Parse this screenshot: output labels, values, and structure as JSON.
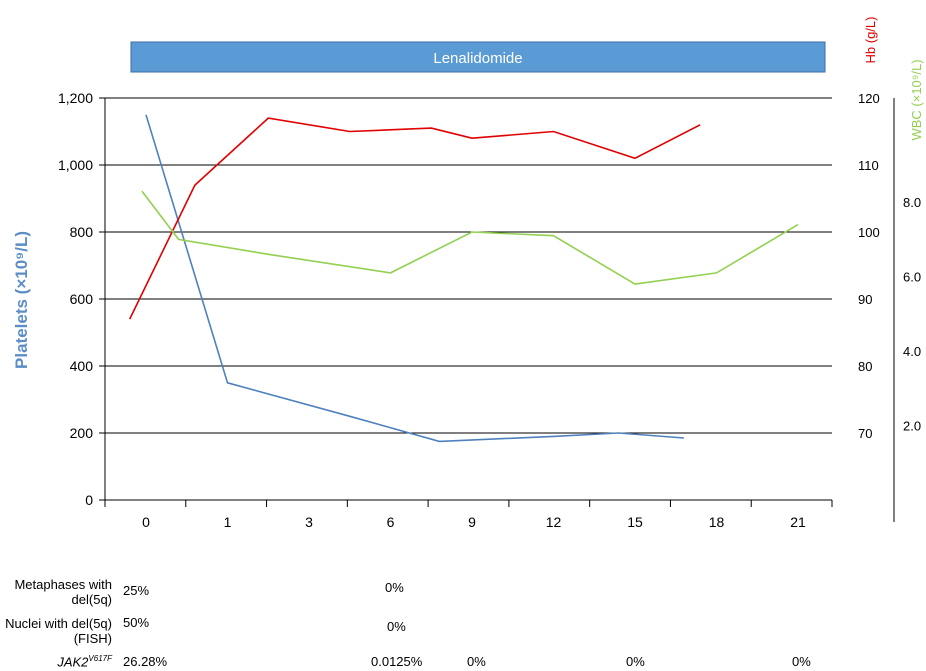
{
  "chart_data": {
    "type": "line",
    "xlabel": "Months",
    "categories": [
      "0",
      "1",
      "3",
      "6",
      "9",
      "12",
      "15",
      "18",
      "21"
    ],
    "treatment_bar": {
      "label": "Lenalidomide",
      "color": "#5b9bd5"
    },
    "axes": {
      "platelets": {
        "label": "Platelets (×10⁹/L)",
        "ylim": [
          0,
          1200
        ],
        "ticks": [
          "0",
          "200",
          "400",
          "600",
          "800",
          "1,000",
          "1,200"
        ],
        "color": "#5b8ec9"
      },
      "hb": {
        "label": "Hb (g/L)",
        "ylim": [
          60,
          120
        ],
        "ticks": [
          "70",
          "80",
          "90",
          "100",
          "110",
          "120"
        ],
        "color": "#e00000"
      },
      "wbc": {
        "label": "WBC (×10⁹/L)",
        "ylim": [
          0,
          10.8
        ],
        "ticks": [
          "2.0",
          "4.0",
          "6.0",
          "8.0"
        ],
        "color": "#92d050"
      }
    },
    "series": [
      {
        "name": "Platelets",
        "axis": "platelets",
        "color": "#4f81bd",
        "points": [
          [
            0.0,
            1150
          ],
          [
            1.0,
            350
          ],
          [
            2.5,
            250
          ],
          [
            3.6,
            175
          ],
          [
            5.0,
            190
          ],
          [
            5.8,
            200
          ],
          [
            6.6,
            185
          ]
        ]
      },
      {
        "name": "Hb",
        "axis": "hb",
        "color": "#e00000",
        "points": [
          [
            -0.2,
            87
          ],
          [
            0.6,
            107
          ],
          [
            1.5,
            117
          ],
          [
            2.5,
            115
          ],
          [
            3.5,
            115.5
          ],
          [
            4.0,
            114
          ],
          [
            5.0,
            115
          ],
          [
            6.0,
            111
          ],
          [
            6.8,
            116
          ]
        ]
      },
      {
        "name": "WBC",
        "axis": "wbc",
        "color": "#92d050",
        "points": [
          [
            -0.05,
            8.3
          ],
          [
            0.4,
            7.0
          ],
          [
            1.5,
            6.6
          ],
          [
            3.0,
            6.1
          ],
          [
            4.0,
            7.2
          ],
          [
            5.0,
            7.1
          ],
          [
            6.0,
            5.8
          ],
          [
            7.0,
            6.1
          ],
          [
            8.0,
            7.4
          ]
        ]
      }
    ]
  },
  "table": {
    "rows": [
      {
        "label": "Metaphases with del(5q)",
        "italic": false,
        "values": [
          {
            "text": "25%",
            "col": "a"
          },
          {
            "text": "0%",
            "col": "b"
          }
        ]
      },
      {
        "label": "Nuclei with del(5q) (FISH)",
        "italic": false,
        "values": [
          {
            "text": "50%",
            "col": "a"
          },
          {
            "text": "0%",
            "col": "b2"
          }
        ]
      },
      {
        "label": "JAK2",
        "label_sup": "V617F",
        "italic": true,
        "values": [
          {
            "text": "26.28%",
            "col": "a"
          },
          {
            "text": "0.0125%",
            "col": "c"
          },
          {
            "text": "0%",
            "col": "d"
          },
          {
            "text": "0%",
            "col": "e"
          },
          {
            "text": "0%",
            "col": "f"
          }
        ]
      }
    ]
  }
}
